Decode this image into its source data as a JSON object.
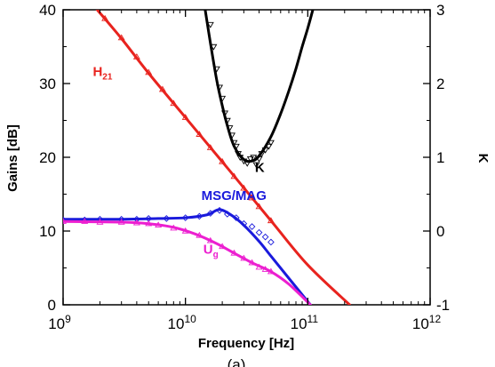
{
  "chart_data": {
    "type": "line",
    "xlabel": "Frequency [Hz]",
    "ylabel_left": "Gains [dB]",
    "ylabel_right": "K",
    "x_scale": "log",
    "xlim": [
      1000000000.0,
      1000000000000.0
    ],
    "ylim_left": [
      0,
      40
    ],
    "ylim_right": [
      -1,
      3
    ],
    "grid": false,
    "legend": "none",
    "x_ticks": [
      {
        "value": 1000000000.0,
        "base": "10",
        "exp": "9"
      },
      {
        "value": 10000000000.0,
        "base": "10",
        "exp": "10"
      },
      {
        "value": 100000000000.0,
        "base": "10",
        "exp": "11"
      },
      {
        "value": 1000000000000.0,
        "base": "10",
        "exp": "12"
      }
    ],
    "y_ticks_left": [
      "0",
      "10",
      "20",
      "30",
      "40"
    ],
    "y_ticks_right": [
      "-1",
      "0",
      "1",
      "2",
      "3"
    ],
    "caption_fragment": "(a)",
    "series": [
      {
        "name": "H21",
        "label_main": "H",
        "label_sub": "21",
        "color": "#e8231e",
        "axis": "left",
        "x": [
          1900000000.0,
          3000000000.0,
          5000000000.0,
          10000000000.0,
          20000000000.0,
          50000000000.0,
          100000000000.0,
          220000000000.0
        ],
        "y": [
          40,
          36.1,
          31.4,
          25.4,
          19.4,
          11.4,
          5.4,
          0
        ],
        "measured_x": [
          2200000000.0,
          3000000000.0,
          4000000000.0,
          5000000000.0,
          6500000000.0,
          8000000000.0,
          10000000000.0,
          13000000000.0,
          16000000000.0,
          20000000000.0,
          25000000000.0,
          30000000000.0,
          35000000000.0,
          40000000000.0,
          50000000000.0
        ],
        "measured_y": [
          38.8,
          36.2,
          33.6,
          31.5,
          29.2,
          27.3,
          25.4,
          23.1,
          21.3,
          19.4,
          17.4,
          15.8,
          14.5,
          13.3,
          11.4
        ]
      },
      {
        "name": "MSG/MAG",
        "color": "#1a1adc",
        "axis": "left",
        "x": [
          1000000000.0,
          3000000000.0,
          6000000000.0,
          10000000000.0,
          15000000000.0,
          19000000000.0,
          24000000000.0,
          30000000000.0,
          40000000000.0,
          50000000000.0,
          70000000000.0,
          105000000000.0
        ],
        "y": [
          11.6,
          11.6,
          11.7,
          11.8,
          12.2,
          12.9,
          12.1,
          10.8,
          8.6,
          6.6,
          3.6,
          0
        ],
        "measured_x": [
          1000000000.0,
          1500000000.0,
          2000000000.0,
          3000000000.0,
          4000000000.0,
          5000000000.0,
          7000000000.0,
          10000000000.0,
          13000000000.0,
          16000000000.0,
          19000000000.0,
          22000000000.0,
          26000000000.0,
          30000000000.0,
          35000000000.0,
          40000000000.0,
          45000000000.0,
          50000000000.0
        ],
        "measured_y": [
          11.5,
          11.5,
          11.6,
          11.6,
          11.6,
          11.7,
          11.7,
          11.8,
          12,
          12.4,
          12.8,
          12.3,
          11.8,
          11,
          10.6,
          9.8,
          9.2,
          8.5
        ]
      },
      {
        "name": "Ug",
        "label_main": "U",
        "label_sub": "g",
        "color": "#ec1fd0",
        "axis": "left",
        "x": [
          1000000000.0,
          3000000000.0,
          5000000000.0,
          8000000000.0,
          12000000000.0,
          18000000000.0,
          25000000000.0,
          35000000000.0,
          50000000000.0,
          70000000000.0,
          105000000000.0
        ],
        "y": [
          11.3,
          11.2,
          11,
          10.5,
          9.6,
          8.3,
          7,
          5.7,
          4.5,
          2.8,
          0
        ],
        "measured_x": [
          1000000000.0,
          1500000000.0,
          2000000000.0,
          3000000000.0,
          4000000000.0,
          5000000000.0,
          6000000000.0,
          8000000000.0,
          10000000000.0,
          13000000000.0,
          16000000000.0,
          20000000000.0,
          25000000000.0,
          30000000000.0,
          35000000000.0,
          40000000000.0,
          45000000000.0,
          50000000000.0
        ],
        "measured_y": [
          11.3,
          11.3,
          11.2,
          11.2,
          11.1,
          11,
          10.8,
          10.4,
          10,
          9.4,
          8.7,
          7.9,
          7,
          6.3,
          5.7,
          5.1,
          4.8,
          4.5
        ]
      },
      {
        "name": "K",
        "label_main": "K",
        "color": "#000000",
        "axis": "right",
        "x": [
          14500000000.0,
          16000000000.0,
          18000000000.0,
          20000000000.0,
          22000000000.0,
          25000000000.0,
          30000000000.0,
          35000000000.0,
          40000000000.0,
          50000000000.0,
          60000000000.0,
          70000000000.0,
          80000000000.0,
          90000000000.0,
          100000000000.0,
          110000000000.0
        ],
        "y": [
          3,
          2.55,
          2.05,
          1.7,
          1.43,
          1.15,
          0.97,
          0.95,
          1.02,
          1.28,
          1.59,
          1.9,
          2.2,
          2.5,
          2.75,
          3
        ],
        "measured_x": [
          16000000000.0,
          17000000000.0,
          18000000000.0,
          19000000000.0,
          20000000000.0,
          21000000000.0,
          22000000000.0,
          23000000000.0,
          24000000000.0,
          25000000000.0,
          26000000000.0,
          27000000000.0,
          28000000000.0,
          30000000000.0,
          32000000000.0,
          34000000000.0,
          36000000000.0,
          38000000000.0,
          40000000000.0,
          42000000000.0,
          45000000000.0,
          48000000000.0,
          50000000000.0
        ],
        "measured_y": [
          2.8,
          2.5,
          2.2,
          1.95,
          1.8,
          1.6,
          1.5,
          1.4,
          1.3,
          1.2,
          1.15,
          1.05,
          1,
          0.95,
          0.92,
          0.98,
          1.0,
          0.9,
          0.98,
          1.05,
          1.1,
          1.15,
          1.2
        ]
      }
    ]
  }
}
